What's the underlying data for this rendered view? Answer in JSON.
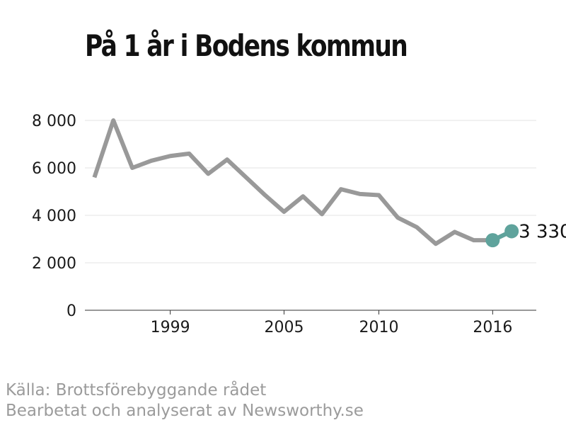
{
  "title": "På 1 år i Bodens kommun",
  "footer": {
    "source": "Källa: Brottsförebyggande rådet",
    "credit": "Bearbetat och analyserat av Newsworthy.se"
  },
  "chart_data": {
    "type": "line",
    "title": "På 1 år i Bodens kommun",
    "xlabel": "",
    "ylabel": "",
    "xlim": [
      1994.5,
      2018.3
    ],
    "ylim": [
      0,
      8000
    ],
    "x_ticks": [
      1999,
      2005,
      2010,
      2016
    ],
    "x_tick_labels": [
      "1999",
      "2005",
      "2010",
      "2016"
    ],
    "y_ticks": [
      0,
      2000,
      4000,
      6000,
      8000
    ],
    "y_tick_labels": [
      "0",
      "2 000",
      "4 000",
      "6 000",
      "8 000"
    ],
    "grid": "horizontal",
    "series": [
      {
        "x": [
          1995,
          1996,
          1997,
          1998,
          1999,
          2000,
          2001,
          2002,
          2003,
          2004,
          2005,
          2006,
          2007,
          2008,
          2009,
          2010,
          2011,
          2012,
          2013,
          2014,
          2015,
          2016,
          2017
        ],
        "values": [
          5600,
          8000,
          6000,
          6300,
          6500,
          6600,
          5750,
          6350,
          5600,
          4850,
          4150,
          4800,
          4050,
          5100,
          4900,
          4850,
          3900,
          3500,
          2800,
          3300,
          2950,
          2950,
          3330
        ],
        "color": "#999999",
        "highlight_from_index": 21,
        "highlight_color": "#5fa39c"
      }
    ],
    "end_label": "3 330"
  }
}
